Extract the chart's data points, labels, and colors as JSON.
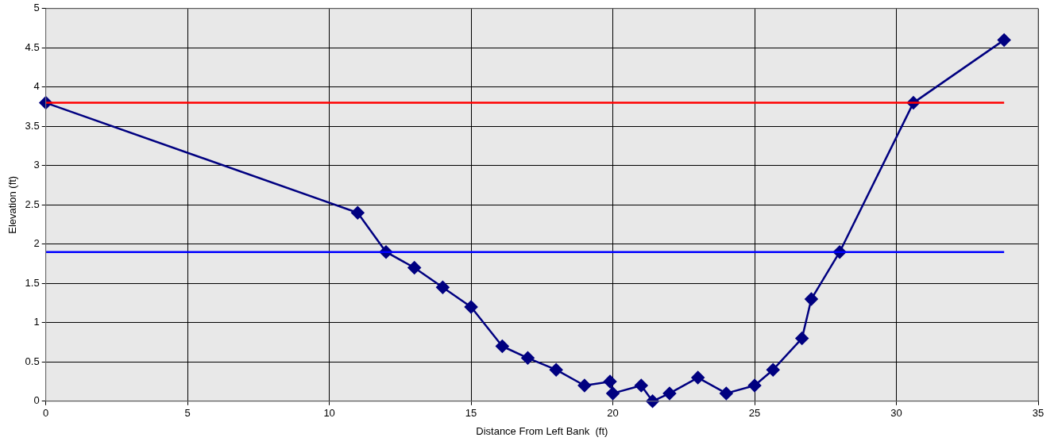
{
  "chart_data": {
    "type": "line",
    "xlabel": "Distance From Left Bank  (ft)",
    "ylabel": "Elevation (ft)",
    "xlim": [
      0,
      35
    ],
    "xticks": [
      0,
      5,
      10,
      15,
      20,
      25,
      30,
      35
    ],
    "ylim": [
      0,
      5
    ],
    "yticks": [
      0,
      0.5,
      1,
      1.5,
      2,
      2.5,
      3,
      3.5,
      4,
      4.5,
      5
    ],
    "grid": true,
    "legend": false,
    "marker": "diamond",
    "line_style": "solid",
    "series": [
      {
        "color": "#ff0000",
        "x": [
          0,
          33.8
        ],
        "values": [
          3.8,
          3.8
        ],
        "marker": "none"
      },
      {
        "color": "#0000ff",
        "x": [
          0,
          33.8
        ],
        "values": [
          1.9,
          1.9
        ],
        "marker": "none"
      },
      {
        "color": "#000080",
        "x": [
          0,
          11,
          12,
          13,
          14,
          15,
          16.1,
          17,
          18,
          19,
          19.9,
          20,
          21,
          21.4,
          22,
          23,
          24,
          25,
          25.65,
          26.67,
          27,
          28,
          30.6,
          33.8
        ],
        "values": [
          3.8,
          2.4,
          1.9,
          1.7,
          1.45,
          1.2,
          0.7,
          0.55,
          0.4,
          0.2,
          0.25,
          0.1,
          0.2,
          0,
          0.1,
          0.3,
          0.1,
          0.2,
          0.4,
          0.8,
          1.3,
          1.9,
          3.8,
          4.6
        ]
      }
    ]
  }
}
